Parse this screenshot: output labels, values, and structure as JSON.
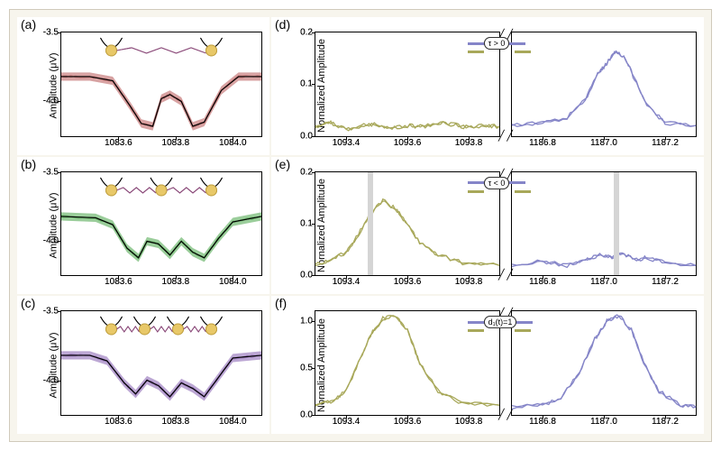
{
  "figure": {
    "background_color": "#f7f5ed",
    "border_color": "#d0cabb",
    "panel_bg": "#ffffff"
  },
  "panels": {
    "a": {
      "label": "(a)",
      "ylabel": "Amplitude (μV)",
      "ylim": [
        -4.25,
        -3.5
      ],
      "yticks": [
        -4.0,
        -3.5
      ],
      "ytick_labels": [
        "-4.0",
        "-3.5"
      ],
      "xlim": [
        1083.4,
        1084.1
      ],
      "xticks": [
        1083.6,
        1083.8,
        1084.0
      ],
      "xtick_labels": [
        "1083.6",
        "1083.8",
        "1084.0"
      ],
      "line_color": "#000000",
      "band_color": "#c77c7c",
      "band_opacity": 0.45,
      "trace": [
        [
          1083.4,
          -3.82
        ],
        [
          1083.5,
          -3.82
        ],
        [
          1083.58,
          -3.85
        ],
        [
          1083.64,
          -4.03
        ],
        [
          1083.68,
          -4.16
        ],
        [
          1083.72,
          -4.18
        ],
        [
          1083.75,
          -3.98
        ],
        [
          1083.78,
          -3.95
        ],
        [
          1083.82,
          -4.0
        ],
        [
          1083.86,
          -4.18
        ],
        [
          1083.9,
          -4.15
        ],
        [
          1083.96,
          -3.92
        ],
        [
          1084.02,
          -3.82
        ],
        [
          1084.1,
          -3.82
        ]
      ],
      "inset_atoms": 2
    },
    "b": {
      "label": "(b)",
      "ylabel": "Amplitude (μV)",
      "ylim": [
        -4.25,
        -3.5
      ],
      "yticks": [
        -4.0,
        -3.5
      ],
      "ytick_labels": [
        "-4.0",
        "-3.5"
      ],
      "xlim": [
        1083.4,
        1084.1
      ],
      "xticks": [
        1083.6,
        1083.8,
        1084.0
      ],
      "xtick_labels": [
        "1083.6",
        "1083.8",
        "1084.0"
      ],
      "line_color": "#000000",
      "band_color": "#6fb86f",
      "band_opacity": 0.45,
      "trace": [
        [
          1083.4,
          -3.82
        ],
        [
          1083.52,
          -3.83
        ],
        [
          1083.58,
          -3.88
        ],
        [
          1083.63,
          -4.05
        ],
        [
          1083.67,
          -4.12
        ],
        [
          1083.7,
          -4.0
        ],
        [
          1083.74,
          -4.02
        ],
        [
          1083.78,
          -4.1
        ],
        [
          1083.82,
          -4.0
        ],
        [
          1083.86,
          -4.08
        ],
        [
          1083.9,
          -4.12
        ],
        [
          1083.95,
          -3.98
        ],
        [
          1084.0,
          -3.86
        ],
        [
          1084.1,
          -3.82
        ]
      ],
      "inset_atoms": 3
    },
    "c": {
      "label": "(c)",
      "ylabel": "Amplitude (μV)",
      "ylim": [
        -4.25,
        -3.5
      ],
      "yticks": [
        -4.0,
        -3.5
      ],
      "ytick_labels": [
        "-4.0",
        "-3.5"
      ],
      "xlim": [
        1083.4,
        1084.1
      ],
      "xticks": [
        1083.6,
        1083.8,
        1084.0
      ],
      "xtick_labels": [
        "1083.6",
        "1083.8",
        "1084.0"
      ],
      "line_color": "#000000",
      "band_color": "#a080c0",
      "band_opacity": 0.45,
      "trace": [
        [
          1083.4,
          -3.82
        ],
        [
          1083.5,
          -3.82
        ],
        [
          1083.56,
          -3.86
        ],
        [
          1083.62,
          -4.02
        ],
        [
          1083.66,
          -4.1
        ],
        [
          1083.7,
          -4.0
        ],
        [
          1083.74,
          -4.04
        ],
        [
          1083.78,
          -4.12
        ],
        [
          1083.82,
          -4.02
        ],
        [
          1083.86,
          -4.06
        ],
        [
          1083.9,
          -4.12
        ],
        [
          1083.95,
          -3.98
        ],
        [
          1084.0,
          -3.84
        ],
        [
          1084.1,
          -3.82
        ]
      ],
      "inset_atoms": 4
    },
    "d": {
      "label": "(d)",
      "ylabel": "Nornalized Amplitude",
      "ylim": [
        0,
        0.2
      ],
      "yticks": [
        0.0,
        0.1,
        0.2
      ],
      "ytick_labels": [
        "0.0",
        "0.1",
        "0.2"
      ],
      "left": {
        "xlim": [
          1093.3,
          1093.9
        ],
        "xticks": [
          1093.4,
          1093.6,
          1093.8
        ],
        "xtick_labels": [
          "1093.4",
          "1093.6",
          "1093.8"
        ],
        "color": "#a8a85a",
        "trace": [
          [
            1093.3,
            0.018
          ],
          [
            1093.35,
            0.025
          ],
          [
            1093.4,
            0.012
          ],
          [
            1093.45,
            0.02
          ],
          [
            1093.5,
            0.022
          ],
          [
            1093.55,
            0.015
          ],
          [
            1093.6,
            0.02
          ],
          [
            1093.65,
            0.018
          ],
          [
            1093.7,
            0.025
          ],
          [
            1093.75,
            0.022
          ],
          [
            1093.8,
            0.016
          ],
          [
            1093.85,
            0.02
          ],
          [
            1093.9,
            0.018
          ]
        ]
      },
      "right": {
        "xlim": [
          1186.7,
          1187.3
        ],
        "xticks": [
          1186.8,
          1187.0,
          1187.2
        ],
        "xtick_labels": [
          "1186.8",
          "1187.0",
          "1187.2"
        ],
        "color": "#8585c8",
        "trace": [
          [
            1186.7,
            0.02
          ],
          [
            1186.8,
            0.025
          ],
          [
            1186.88,
            0.035
          ],
          [
            1186.94,
            0.07
          ],
          [
            1186.98,
            0.12
          ],
          [
            1187.01,
            0.14
          ],
          [
            1187.04,
            0.165
          ],
          [
            1187.07,
            0.15
          ],
          [
            1187.1,
            0.11
          ],
          [
            1187.14,
            0.06
          ],
          [
            1187.2,
            0.025
          ],
          [
            1187.3,
            0.02
          ]
        ]
      },
      "inset_label": "τ > 0"
    },
    "e": {
      "label": "(e)",
      "ylabel": "Nornalized Amplitude",
      "ylim": [
        0,
        0.2
      ],
      "yticks": [
        0.0,
        0.1,
        0.2
      ],
      "ytick_labels": [
        "0.0",
        "0.1",
        "0.2"
      ],
      "left": {
        "xlim": [
          1093.3,
          1093.9
        ],
        "xticks": [
          1093.4,
          1093.6,
          1093.8
        ],
        "xtick_labels": [
          "1093.4",
          "1093.6",
          "1093.8"
        ],
        "color": "#a8a85a",
        "vbar_x": 1093.48,
        "trace": [
          [
            1093.3,
            0.02
          ],
          [
            1093.35,
            0.03
          ],
          [
            1093.4,
            0.045
          ],
          [
            1093.44,
            0.08
          ],
          [
            1093.48,
            0.12
          ],
          [
            1093.52,
            0.145
          ],
          [
            1093.56,
            0.13
          ],
          [
            1093.6,
            0.1
          ],
          [
            1093.64,
            0.065
          ],
          [
            1093.7,
            0.04
          ],
          [
            1093.78,
            0.025
          ],
          [
            1093.9,
            0.02
          ]
        ]
      },
      "right": {
        "xlim": [
          1186.7,
          1187.3
        ],
        "xticks": [
          1186.8,
          1187.0,
          1187.2
        ],
        "xtick_labels": [
          "1186.8",
          "1187.0",
          "1187.2"
        ],
        "color": "#8585c8",
        "vbar_x": 1187.04,
        "trace": [
          [
            1186.7,
            0.02
          ],
          [
            1186.8,
            0.028
          ],
          [
            1186.88,
            0.02
          ],
          [
            1186.94,
            0.03
          ],
          [
            1186.98,
            0.04
          ],
          [
            1187.02,
            0.035
          ],
          [
            1187.06,
            0.045
          ],
          [
            1187.1,
            0.03
          ],
          [
            1187.14,
            0.035
          ],
          [
            1187.2,
            0.025
          ],
          [
            1187.3,
            0.02
          ]
        ]
      },
      "inset_label": "τ < 0"
    },
    "f": {
      "label": "(f)",
      "ylabel": "Nornalized Amplitude",
      "ylim": [
        0,
        1.1
      ],
      "yticks": [
        0.0,
        0.5,
        1.0
      ],
      "ytick_labels": [
        "0.0",
        "0.5",
        "1.0"
      ],
      "left": {
        "xlim": [
          1093.3,
          1093.9
        ],
        "xticks": [
          1093.4,
          1093.6,
          1093.8
        ],
        "xtick_labels": [
          "1093.4",
          "1093.6",
          "1093.8"
        ],
        "color": "#a8a85a",
        "trace": [
          [
            1093.3,
            0.1
          ],
          [
            1093.36,
            0.15
          ],
          [
            1093.4,
            0.25
          ],
          [
            1093.44,
            0.55
          ],
          [
            1093.48,
            0.85
          ],
          [
            1093.52,
            1.02
          ],
          [
            1093.56,
            1.05
          ],
          [
            1093.6,
            0.9
          ],
          [
            1093.64,
            0.55
          ],
          [
            1093.7,
            0.25
          ],
          [
            1093.78,
            0.12
          ],
          [
            1093.9,
            0.1
          ]
        ]
      },
      "right": {
        "xlim": [
          1186.7,
          1187.3
        ],
        "xticks": [
          1186.8,
          1187.0,
          1187.2
        ],
        "xtick_labels": [
          "1186.8",
          "1187.0",
          "1187.2"
        ],
        "color": "#8585c8",
        "trace": [
          [
            1186.7,
            0.08
          ],
          [
            1186.8,
            0.1
          ],
          [
            1186.86,
            0.18
          ],
          [
            1186.92,
            0.45
          ],
          [
            1186.97,
            0.8
          ],
          [
            1187.01,
            1.0
          ],
          [
            1187.05,
            1.05
          ],
          [
            1187.09,
            0.9
          ],
          [
            1187.13,
            0.55
          ],
          [
            1187.18,
            0.25
          ],
          [
            1187.25,
            0.1
          ],
          [
            1187.3,
            0.08
          ]
        ]
      },
      "inset_label": "d₁(t)=1"
    }
  },
  "colors": {
    "atom_fill": "#e8c868",
    "atom_stroke": "#c0a040",
    "spring": "#8b4b7a",
    "arrow_purple": "#8585c8",
    "arrow_olive": "#a8a85a"
  }
}
